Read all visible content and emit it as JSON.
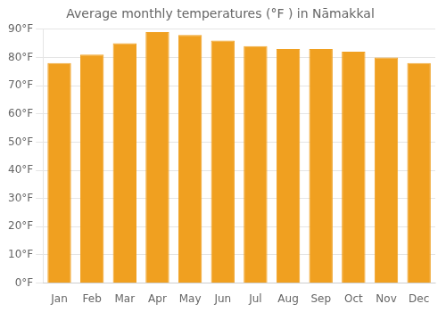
{
  "chart_data": {
    "type": "bar",
    "title": "Average monthly temperatures (°F ) in Nāmakkal",
    "categories": [
      "Jan",
      "Feb",
      "Mar",
      "Apr",
      "May",
      "Jun",
      "Jul",
      "Aug",
      "Sep",
      "Oct",
      "Nov",
      "Dec"
    ],
    "values": [
      78,
      81,
      85,
      89,
      88,
      86,
      84,
      83,
      83,
      82,
      80,
      78
    ],
    "color": "#F0A020",
    "ylim": [
      0,
      90
    ],
    "yticks": [
      {
        "value": 0,
        "label": "0°F"
      },
      {
        "value": 10,
        "label": "10°F"
      },
      {
        "value": 20,
        "label": "20°F"
      },
      {
        "value": 30,
        "label": "30°F"
      },
      {
        "value": 40,
        "label": "40°F"
      },
      {
        "value": 50,
        "label": "50°F"
      },
      {
        "value": 60,
        "label": "60°F"
      },
      {
        "value": 70,
        "label": "70°F"
      },
      {
        "value": 80,
        "label": "80°F"
      },
      {
        "value": 90,
        "label": "90°F"
      }
    ],
    "grid": true
  }
}
